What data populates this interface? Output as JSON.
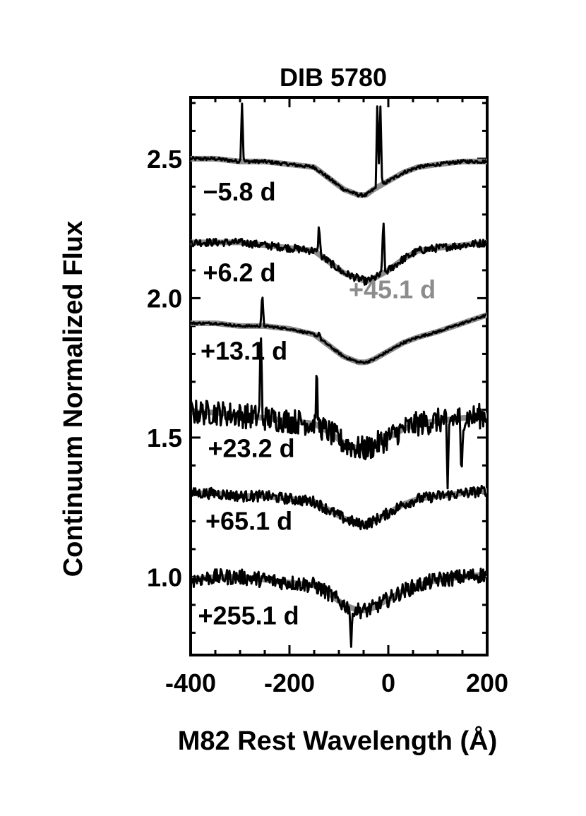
{
  "chart_data": {
    "type": "line",
    "title": "DIB 5780",
    "xlabel": "M82 Rest Wavelength (Å)",
    "ylabel": "Continuum Normalized Flux",
    "xlim": [
      -400,
      200
    ],
    "ylim": [
      0.72,
      2.72
    ],
    "xticks": [
      -400,
      -200,
      0,
      200
    ],
    "xtick_labels": [
      "-400",
      "-200",
      "0",
      "200"
    ],
    "yticks": [
      1.0,
      1.5,
      2.0,
      2.5
    ],
    "ytick_labels": [
      "1.0",
      "1.5",
      "2.0",
      "2.5"
    ],
    "grid": false,
    "legend": "none",
    "reference": {
      "label": "+45.1 d",
      "color": "#8c8c8c",
      "note": "gray template curve overlaid on each epoch"
    },
    "annotations": [
      {
        "text": "+45.1 d",
        "x": -80,
        "y": 2.0,
        "color": "#8c8c8c"
      }
    ],
    "series": [
      {
        "name": "−5.8 d",
        "label_x": -375,
        "label_y": 2.35,
        "color": "#000000",
        "x": [
          -400,
          -350,
          -300,
          -250,
          -200,
          -150,
          -120,
          -90,
          -60,
          -45,
          -30,
          0,
          30,
          60,
          100,
          150,
          200
        ],
        "values": [
          2.5,
          2.5,
          2.49,
          2.49,
          2.48,
          2.47,
          2.43,
          2.39,
          2.37,
          2.37,
          2.39,
          2.42,
          2.45,
          2.47,
          2.48,
          2.49,
          2.49
        ],
        "spikes": [
          {
            "x": -296,
            "y": 2.7
          },
          {
            "x": -22,
            "y": 2.72
          },
          {
            "x": -16,
            "y": 2.69
          }
        ]
      },
      {
        "name": "+6.2 d",
        "label_x": -375,
        "label_y": 2.06,
        "color": "#000000",
        "x": [
          -400,
          -350,
          -300,
          -250,
          -200,
          -150,
          -120,
          -90,
          -60,
          -45,
          -30,
          0,
          30,
          60,
          100,
          150,
          200
        ],
        "values": [
          2.2,
          2.2,
          2.2,
          2.19,
          2.18,
          2.17,
          2.13,
          2.09,
          2.07,
          2.06,
          2.07,
          2.1,
          2.14,
          2.17,
          2.18,
          2.19,
          2.2
        ],
        "spikes": [
          {
            "x": -140,
            "y": 2.27
          },
          {
            "x": -10,
            "y": 2.3
          }
        ]
      },
      {
        "name": "+13.1 d",
        "label_x": -380,
        "label_y": 1.78,
        "color": "#000000",
        "x": [
          -400,
          -350,
          -300,
          -250,
          -200,
          -150,
          -120,
          -90,
          -60,
          -45,
          -30,
          0,
          30,
          60,
          100,
          150,
          200
        ],
        "values": [
          1.91,
          1.91,
          1.9,
          1.9,
          1.89,
          1.87,
          1.83,
          1.79,
          1.77,
          1.77,
          1.78,
          1.81,
          1.84,
          1.86,
          1.88,
          1.91,
          1.94
        ],
        "spikes": [
          {
            "x": -255,
            "y": 2.02
          },
          {
            "x": -140,
            "y": 1.88
          }
        ]
      },
      {
        "name": "+23.2 d",
        "label_x": -365,
        "label_y": 1.43,
        "color": "#000000",
        "x": [
          -400,
          -350,
          -300,
          -250,
          -200,
          -150,
          -120,
          -90,
          -60,
          -45,
          -30,
          0,
          30,
          60,
          100,
          150,
          200
        ],
        "values": [
          1.59,
          1.59,
          1.58,
          1.57,
          1.56,
          1.55,
          1.52,
          1.48,
          1.46,
          1.46,
          1.47,
          1.5,
          1.53,
          1.55,
          1.56,
          1.57,
          1.58
        ],
        "spikes": [
          {
            "x": -258,
            "y": 1.88
          },
          {
            "x": -145,
            "y": 1.72
          },
          {
            "x": 120,
            "y": 1.3
          },
          {
            "x": 148,
            "y": 1.32
          }
        ]
      },
      {
        "name": "+65.1 d",
        "label_x": -370,
        "label_y": 1.17,
        "color": "#000000",
        "x": [
          -400,
          -350,
          -300,
          -250,
          -200,
          -150,
          -120,
          -90,
          -60,
          -45,
          -30,
          0,
          30,
          60,
          100,
          150,
          200
        ],
        "values": [
          1.3,
          1.3,
          1.29,
          1.29,
          1.28,
          1.27,
          1.24,
          1.21,
          1.19,
          1.19,
          1.2,
          1.23,
          1.26,
          1.28,
          1.29,
          1.3,
          1.31
        ],
        "spikes": []
      },
      {
        "name": "+255.1 d",
        "label_x": -385,
        "label_y": 0.83,
        "color": "#000000",
        "x": [
          -400,
          -350,
          -300,
          -250,
          -200,
          -150,
          -120,
          -90,
          -60,
          -45,
          -30,
          0,
          30,
          60,
          100,
          150,
          200
        ],
        "values": [
          0.99,
          1.0,
          1.0,
          0.99,
          0.98,
          0.97,
          0.94,
          0.9,
          0.88,
          0.88,
          0.89,
          0.92,
          0.95,
          0.97,
          0.99,
          1.0,
          1.01
        ],
        "spikes": [
          {
            "x": -75,
            "y": 0.74
          }
        ]
      }
    ]
  }
}
